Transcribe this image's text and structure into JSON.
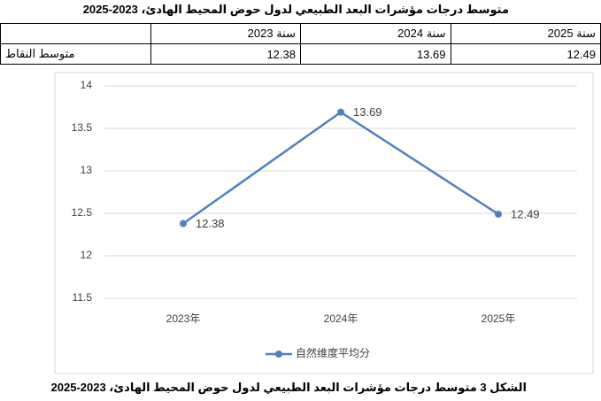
{
  "title": "متوسط درجات مؤشرات البعد الطبيعي لدول حوض المحيط الهادئ، 2023-2025",
  "table": {
    "header": [
      "سنة 2023",
      "سنة 2024",
      "سنة 2025"
    ],
    "rows": [
      {
        "label": "متوسط النقاط",
        "values": [
          12.38,
          13.69,
          12.49
        ]
      }
    ]
  },
  "chart_data": {
    "type": "line",
    "categories": [
      "2023年",
      "2024年",
      "2025年"
    ],
    "series": [
      {
        "name": "自然维度平均分",
        "color": "#4f81bd",
        "values": [
          12.38,
          13.69,
          12.49
        ]
      }
    ],
    "ylim": [
      11.5,
      14
    ],
    "yticks": [
      11.5,
      12,
      12.5,
      13,
      13.5,
      14
    ],
    "grid": true,
    "legend": "bottom"
  },
  "caption": "الشكل 3 متوسط درجات مؤشرات البعد الطبيعي لدول حوض المحيط الهادئ، 2023-2025"
}
